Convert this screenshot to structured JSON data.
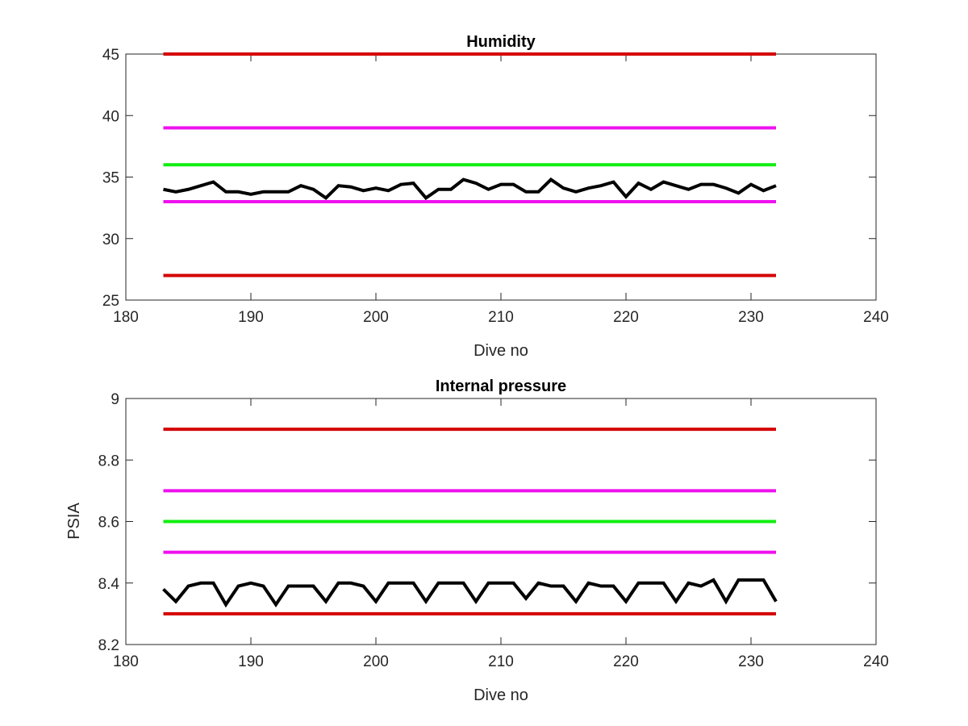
{
  "chart_data": [
    {
      "type": "line",
      "title": "Humidity",
      "xlabel": "Dive no",
      "ylabel": "",
      "xlim": [
        180,
        240
      ],
      "ylim": [
        25,
        45
      ],
      "xticks": [
        180,
        190,
        200,
        210,
        220,
        230,
        240
      ],
      "yticks": [
        25,
        30,
        35,
        40,
        45
      ],
      "xtick_labels": [
        "180",
        "190",
        "200",
        "210",
        "220",
        "230",
        "240"
      ],
      "ytick_labels": [
        "25",
        "30",
        "35",
        "40",
        "45"
      ],
      "grid": false,
      "legend": "none",
      "threshold_lines": [
        {
          "y": 45,
          "x": [
            183,
            232
          ],
          "color": "#d40000"
        },
        {
          "y": 39,
          "x": [
            183,
            232
          ],
          "color": "#ee11ee"
        },
        {
          "y": 36,
          "x": [
            183,
            232
          ],
          "color": "#11ee11"
        },
        {
          "y": 33,
          "x": [
            183,
            232
          ],
          "color": "#ee11ee"
        },
        {
          "y": 27,
          "x": [
            183,
            232
          ],
          "color": "#d40000"
        }
      ],
      "series": [
        {
          "color": "#000000",
          "x": [
            183,
            184,
            185,
            186,
            187,
            188,
            189,
            190,
            191,
            192,
            193,
            194,
            195,
            196,
            197,
            198,
            199,
            200,
            201,
            202,
            203,
            204,
            205,
            206,
            207,
            208,
            209,
            210,
            211,
            212,
            213,
            214,
            215,
            216,
            217,
            218,
            219,
            220,
            221,
            222,
            223,
            224,
            225,
            226,
            227,
            228,
            229,
            230,
            231,
            232
          ],
          "y": [
            34.0,
            33.8,
            34.0,
            34.3,
            34.6,
            33.8,
            33.8,
            33.6,
            33.8,
            33.8,
            33.8,
            34.3,
            34.0,
            33.3,
            34.3,
            34.2,
            33.9,
            34.1,
            33.9,
            34.4,
            34.5,
            33.3,
            34.0,
            34.0,
            34.8,
            34.5,
            34.0,
            34.4,
            34.4,
            33.8,
            33.8,
            34.8,
            34.1,
            33.8,
            34.1,
            34.3,
            34.6,
            33.4,
            34.5,
            34.0,
            34.6,
            34.3,
            34.0,
            34.4,
            34.4,
            34.1,
            33.7,
            34.4,
            33.9,
            34.3
          ]
        }
      ]
    },
    {
      "type": "line",
      "title": "Internal pressure",
      "xlabel": "Dive no",
      "ylabel": "PSIA",
      "xlim": [
        180,
        240
      ],
      "ylim": [
        8.2,
        9
      ],
      "xticks": [
        180,
        190,
        200,
        210,
        220,
        230,
        240
      ],
      "yticks": [
        8.2,
        8.4,
        8.6,
        8.8,
        9
      ],
      "xtick_labels": [
        "180",
        "190",
        "200",
        "210",
        "220",
        "230",
        "240"
      ],
      "ytick_labels": [
        "8.2",
        "8.4",
        "8.6",
        "8.8",
        "9"
      ],
      "grid": false,
      "legend": "none",
      "threshold_lines": [
        {
          "y": 8.9,
          "x": [
            183,
            232
          ],
          "color": "#d40000"
        },
        {
          "y": 8.7,
          "x": [
            183,
            232
          ],
          "color": "#ee11ee"
        },
        {
          "y": 8.6,
          "x": [
            183,
            232
          ],
          "color": "#11ee11"
        },
        {
          "y": 8.5,
          "x": [
            183,
            232
          ],
          "color": "#ee11ee"
        },
        {
          "y": 8.3,
          "x": [
            183,
            232
          ],
          "color": "#d40000"
        }
      ],
      "series": [
        {
          "color": "#000000",
          "x": [
            183,
            184,
            185,
            186,
            187,
            188,
            189,
            190,
            191,
            192,
            193,
            194,
            195,
            196,
            197,
            198,
            199,
            200,
            201,
            202,
            203,
            204,
            205,
            206,
            207,
            208,
            209,
            210,
            211,
            212,
            213,
            214,
            215,
            216,
            217,
            218,
            219,
            220,
            221,
            222,
            223,
            224,
            225,
            226,
            227,
            228,
            229,
            230,
            231,
            232
          ],
          "y": [
            8.38,
            8.34,
            8.39,
            8.4,
            8.4,
            8.33,
            8.39,
            8.4,
            8.39,
            8.33,
            8.39,
            8.39,
            8.39,
            8.34,
            8.4,
            8.4,
            8.39,
            8.34,
            8.4,
            8.4,
            8.4,
            8.34,
            8.4,
            8.4,
            8.4,
            8.34,
            8.4,
            8.4,
            8.4,
            8.35,
            8.4,
            8.39,
            8.39,
            8.34,
            8.4,
            8.39,
            8.39,
            8.34,
            8.4,
            8.4,
            8.4,
            8.34,
            8.4,
            8.39,
            8.41,
            8.34,
            8.41,
            8.41,
            8.41,
            8.34
          ]
        }
      ]
    }
  ]
}
